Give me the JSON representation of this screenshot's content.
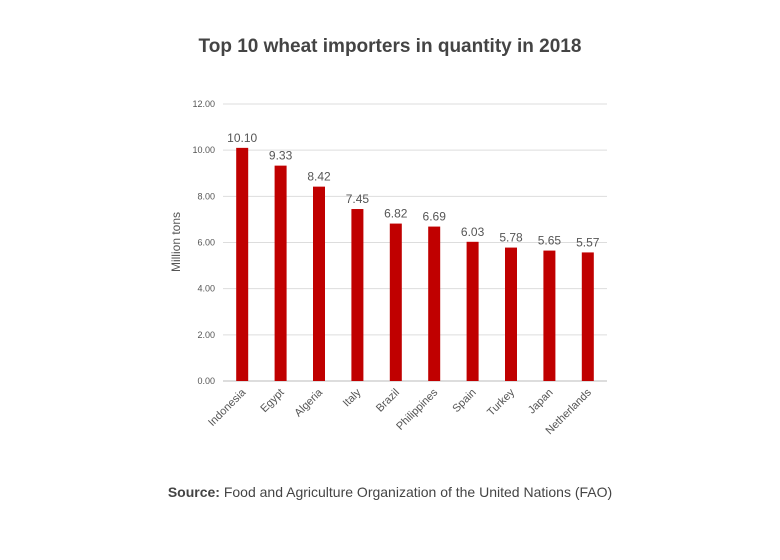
{
  "title": "Top 10 wheat importers in quantity in 2018",
  "source": {
    "label": "Source:",
    "text": "Food and Agriculture Organization of the United Nations (FAO)"
  },
  "chart_data": {
    "type": "bar",
    "title": "Top 10 wheat importers in quantity in 2018",
    "xlabel": "",
    "ylabel": "Million tons",
    "ylim": [
      0,
      12
    ],
    "yticks": [
      "0.00",
      "2.00",
      "4.00",
      "6.00",
      "8.00",
      "10.00",
      "12.00"
    ],
    "grid": true,
    "categories": [
      "Indonesia",
      "Egypt",
      "Algeria",
      "Italy",
      "Brazil",
      "Philippines",
      "Spain",
      "Turkey",
      "Japan",
      "Netherlands"
    ],
    "values": [
      10.1,
      9.33,
      8.42,
      7.45,
      6.82,
      6.69,
      6.03,
      5.78,
      5.65,
      5.57
    ],
    "data_labels": [
      "10.10",
      "9.33",
      "8.42",
      "7.45",
      "6.82",
      "6.69",
      "6.03",
      "5.78",
      "5.65",
      "5.57"
    ],
    "bar_color": "#c00000"
  }
}
